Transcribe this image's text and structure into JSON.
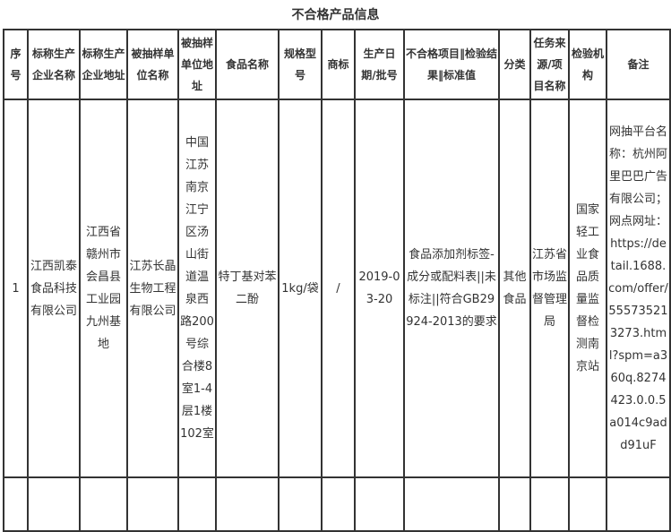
{
  "title": "不合格产品信息",
  "table": {
    "headers": [
      "序号",
      "标称生产企业名称",
      "标称生产企业地址",
      "被抽样单位名称",
      "被抽样单位地址",
      "食品名称",
      "规格型号",
      "商标",
      "生产日期/批号",
      "不合格项目‖检验结果‖标准值",
      "分类",
      "任务来源/项目名称",
      "检验机构",
      "备注"
    ],
    "rows": [
      [
        "1",
        "江西凯泰食品科技有限公司",
        "江西省赣州市会昌县工业园九州基地",
        "江苏长晶生物工程有限公司",
        "中国江苏南京江宁区汤山街道温泉西路200号综合楼8室1-4层1楼102室",
        "特丁基对苯二酚",
        "1kg/袋",
        "/",
        "2019-03-20",
        "食品添加剂标签-成分或配料表||未标注||符合GB29924-2013的要求",
        "其他食品",
        "江苏省市场监督管理局",
        "国家轻工业食品质量监督检测南京站",
        "网抽平台名称：杭州阿里巴巴广告有限公司；网点网址：https://detail.1688.com/offer/555735213273.html?spm=a360q.8274423.0.0.5a014c9add91uF"
      ],
      [
        "",
        "",
        "",
        "",
        "",
        "",
        "",
        "",
        "",
        "",
        "",
        "",
        "",
        ""
      ]
    ]
  }
}
